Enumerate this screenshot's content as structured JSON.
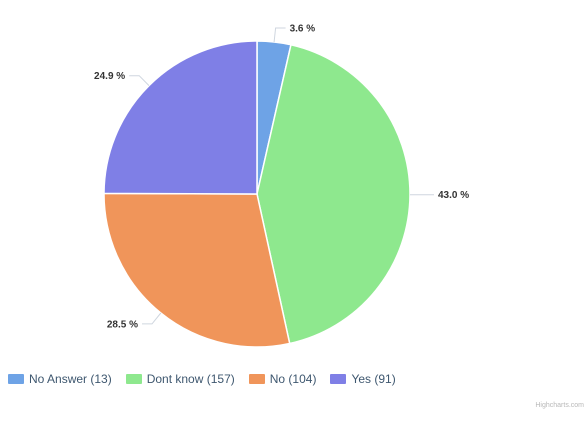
{
  "chart_data": {
    "type": "pie",
    "title": "",
    "categories": [
      "No Answer",
      "Dont know",
      "No",
      "Yes"
    ],
    "values": [
      13,
      157,
      104,
      91
    ],
    "percent_labels": [
      "3.6 %",
      "43.0 %",
      "28.5 %",
      "24.9 %"
    ],
    "legend_labels": [
      "No Answer (13)",
      "Dont know (157)",
      "No (104)",
      "Yes (91)"
    ],
    "colors": [
      "#6ea3e6",
      "#8ee88e",
      "#f0955a",
      "#7f7fe6"
    ],
    "legend_position": "bottom"
  },
  "credits": "Highcharts.com"
}
